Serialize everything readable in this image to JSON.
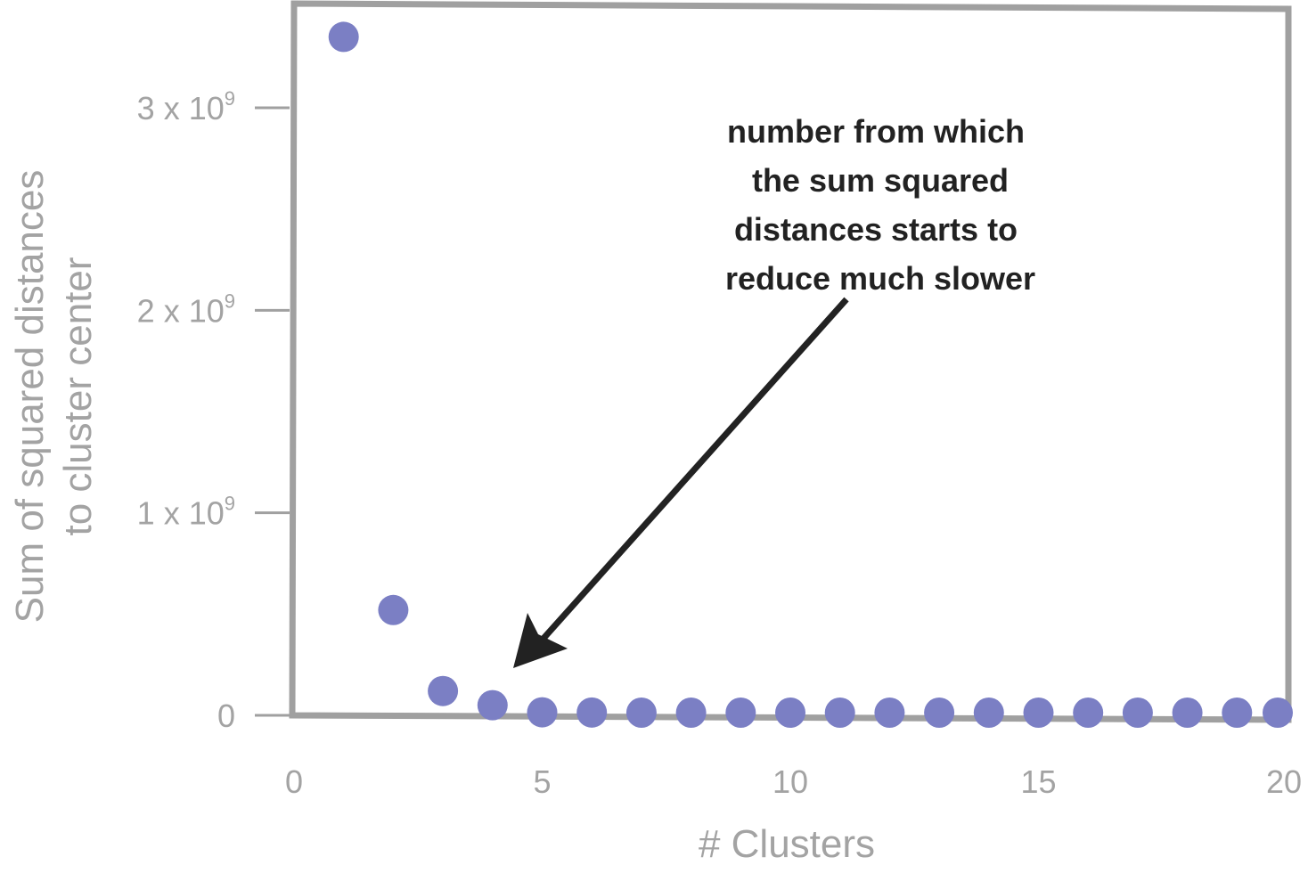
{
  "chart_data": {
    "type": "scatter",
    "title": "",
    "xlabel": "# Clusters",
    "ylabel_lines": [
      "Sum of squared distances",
      "to cluster center"
    ],
    "xlim": [
      0,
      20
    ],
    "ylim": [
      0,
      3000000000
    ],
    "x_ticks": [
      {
        "value": 0,
        "label": "0"
      },
      {
        "value": 5,
        "label": "5"
      },
      {
        "value": 10,
        "label": "10"
      },
      {
        "value": 15,
        "label": "15"
      },
      {
        "value": 20,
        "label": "20"
      }
    ],
    "y_ticks": [
      {
        "value": 0,
        "base": "0",
        "exp": ""
      },
      {
        "value": 1000000000,
        "base": "1 x 10",
        "exp": "9"
      },
      {
        "value": 2000000000,
        "base": "2 x 10",
        "exp": "9"
      },
      {
        "value": 3000000000,
        "base": "3 x 10",
        "exp": "9"
      }
    ],
    "grid": false,
    "colors": {
      "point": "#7b7fc4",
      "frame": "#a0a0a0",
      "tick_text": "#a3a3a3",
      "annotation": "#222222"
    },
    "series": [
      {
        "x": [
          1,
          2,
          3,
          4,
          5,
          6,
          7,
          8,
          9,
          10,
          11,
          12,
          13,
          14,
          15,
          16,
          17,
          18,
          19,
          20
        ],
        "y": [
          3350000000,
          520000000,
          120000000,
          50000000,
          15000000,
          14000000,
          13000000,
          12000000,
          11000000,
          10000000,
          9000000,
          8500000,
          8000000,
          7500000,
          7000000,
          6500000,
          6000000,
          5500000,
          5000000,
          4500000
        ]
      }
    ],
    "annotation": {
      "lines": [
        "number from which",
        "the sum squared",
        "distances starts to",
        "reduce much slower"
      ],
      "points_to": {
        "x": 4.4,
        "y": 150000000
      }
    }
  }
}
